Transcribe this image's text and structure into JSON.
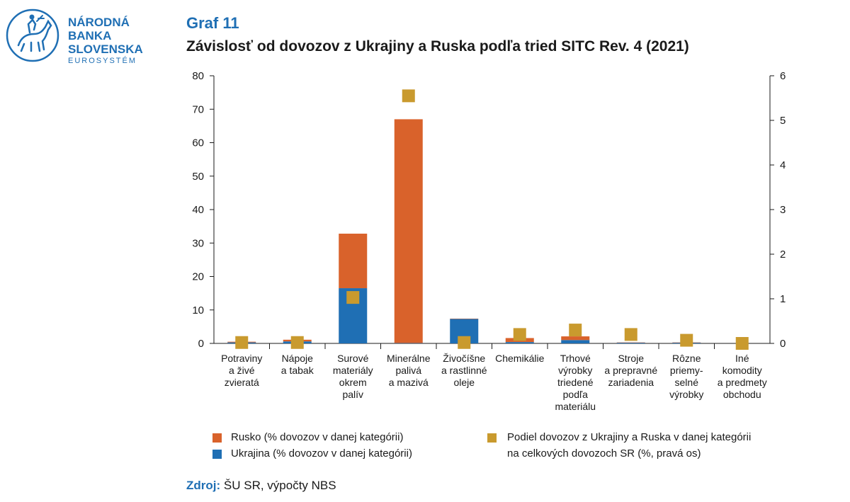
{
  "logo": {
    "line1": "NÁRODNÁ",
    "line2": "BANKA",
    "line3": "SLOVENSKA",
    "line4": "EUROSYSTÉM",
    "icon": "horse-rider-icon",
    "color": "#1f6fb4"
  },
  "chart_data": {
    "type": "bar",
    "title": "Graf 11",
    "subtitle": "Závislosť od dovozov z Ukrajiny a Ruska podľa tried SITC Rev. 4 (2021)",
    "categories": [
      [
        "Potraviny",
        "a živé",
        "zvieratá"
      ],
      [
        "Nápoje",
        "a tabak"
      ],
      [
        "Surové",
        "materiály",
        "okrem",
        "palív"
      ],
      [
        "Minerálne",
        "palivá",
        "a mazivá"
      ],
      [
        "Živočíšne",
        "a rastlinné",
        "oleje"
      ],
      [
        "Chemikálie"
      ],
      [
        "Trhové",
        "výrobky",
        "triedené",
        "podľa",
        "materiálu"
      ],
      [
        "Stroje",
        "a prepravné",
        "zariadenia"
      ],
      [
        "Rôzne",
        "priemy-",
        "selné",
        "výrobky"
      ],
      [
        "Iné",
        "komodity",
        "a predmety",
        "obchodu"
      ]
    ],
    "series": [
      {
        "name": "Ukrajina (% dovozov v danej kategórii)",
        "type": "stacked-bar",
        "axis": "left",
        "color": "#1f6fb4",
        "values": [
          0.3,
          0.6,
          16.5,
          0.1,
          7.3,
          0.4,
          1.0,
          0.2,
          0.2,
          0.0
        ]
      },
      {
        "name": "Rusko (% dovozov v danej kategórii)",
        "type": "stacked-bar",
        "axis": "left",
        "color": "#d9622b",
        "values": [
          0.2,
          0.5,
          16.3,
          66.9,
          0.1,
          1.2,
          1.1,
          0.1,
          0.1,
          0.0
        ]
      },
      {
        "name": "Podiel dovozov z Ukrajiny a Ruska v danej kategórii na celkových dovozoch SR (%, pravá os)",
        "type": "marker",
        "axis": "right",
        "color": "#c99a2e",
        "values": [
          0.02,
          0.02,
          1.03,
          5.55,
          0.02,
          0.2,
          0.3,
          0.2,
          0.07,
          0.0
        ]
      }
    ],
    "ylim_left": [
      0,
      80
    ],
    "yticks_left": [
      0,
      10,
      20,
      30,
      40,
      50,
      60,
      70,
      80
    ],
    "ylim_right": [
      0,
      6
    ],
    "yticks_right": [
      0,
      1,
      2,
      3,
      4,
      5,
      6
    ],
    "grid": false,
    "legend_placement": "bottom"
  },
  "legend": {
    "rusko": "Rusko (% dovozov v danej kategórii)",
    "ukrajina": "Ukrajina (% dovozov v danej kategórii)",
    "podiel_line1": "Podiel dovozov z Ukrajiny a Ruska v danej kategórii",
    "podiel_line2": "na celkových dovozoch SR (%, pravá os)"
  },
  "source": {
    "label": "Zdroj:",
    "text": "ŠU SR, výpočty NBS"
  }
}
